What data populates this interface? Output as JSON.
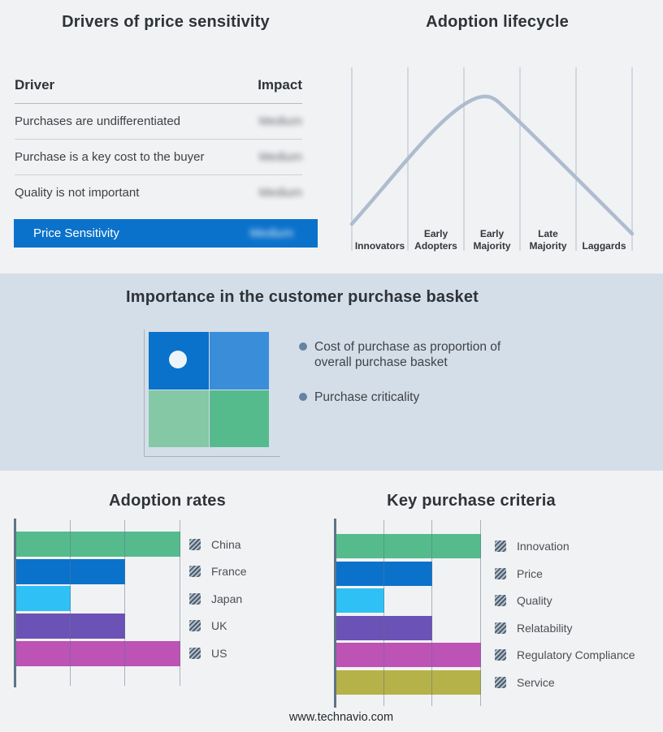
{
  "footer": {
    "url": "www.technavio.com"
  },
  "basket_panel": {
    "title": "Importance in the customer purchase basket",
    "bullets": [
      "Cost of purchase as proportion of overall purchase basket",
      "Purchase criticality"
    ]
  },
  "matrix": {
    "quadrant_colors": [
      "#0b72cb",
      "#3a8dd9",
      "#84c8a5",
      "#55bb8d"
    ],
    "marker": "light dot in top-left quadrant"
  },
  "chart_data": [
    {
      "type": "table",
      "title": "Drivers of price sensitivity",
      "columns": [
        "Driver",
        "Impact"
      ],
      "rows": [
        [
          "Purchases are undifferentiated",
          "Medium"
        ],
        [
          "Purchase is a key cost to the buyer",
          "Medium"
        ],
        [
          "Quality is not important",
          "Medium"
        ]
      ],
      "highlight_row": [
        "Price Sensitivity",
        "Medium"
      ],
      "highlight_color": "#0b72cb",
      "impact_values_blurred": true
    },
    {
      "type": "line",
      "title": "Adoption lifecycle",
      "categories": [
        "Innovators",
        "Early Adopters",
        "Early Majority",
        "Late Majority",
        "Laggards"
      ],
      "shape": "bell curve peaking over Early Majority",
      "curve_color": "#aebccf",
      "grid": true
    },
    {
      "type": "bar",
      "title": "Adoption rates",
      "orientation": "horizontal",
      "categories": [
        "China",
        "France",
        "Japan",
        "UK",
        "US"
      ],
      "values": [
        3,
        2,
        1,
        2,
        3
      ],
      "colors": [
        "#55bb8d",
        "#0b72cb",
        "#2fc0f6",
        "#6b52b6",
        "#bc53b5"
      ],
      "xlim": [
        0,
        3
      ],
      "gridlines": [
        1,
        2,
        3
      ],
      "legend_position": "right"
    },
    {
      "type": "bar",
      "title": "Key purchase criteria",
      "orientation": "horizontal",
      "categories": [
        "Innovation",
        "Price",
        "Quality",
        "Relatability",
        "Regulatory Compliance",
        "Service"
      ],
      "values": [
        3,
        2,
        1,
        2,
        3,
        3
      ],
      "colors": [
        "#55bb8d",
        "#0b72cb",
        "#2fc0f6",
        "#6b52b6",
        "#bc53b5",
        "#b5b24a"
      ],
      "xlim": [
        0,
        3
      ],
      "gridlines": [
        1,
        2,
        3
      ],
      "legend_position": "right"
    }
  ]
}
